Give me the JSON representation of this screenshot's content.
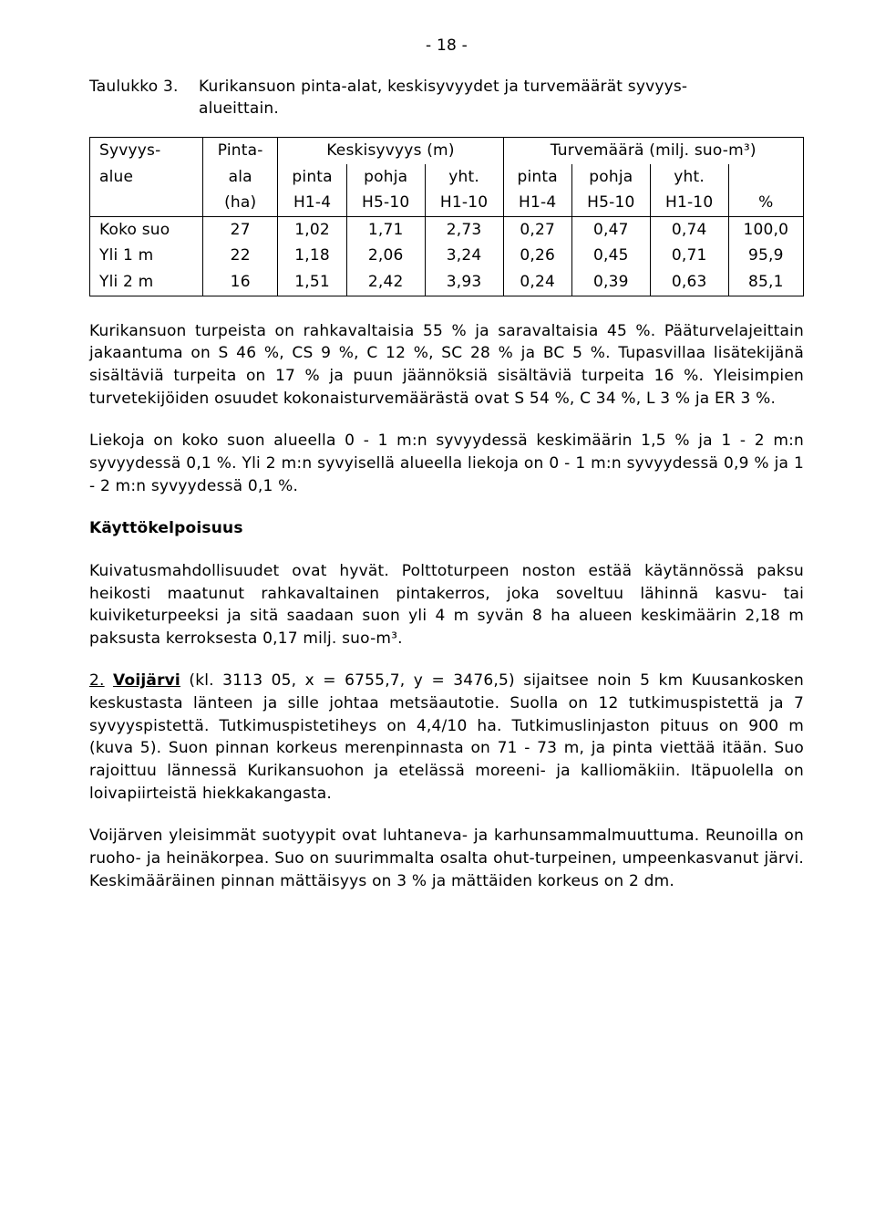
{
  "page_number": "- 18 -",
  "caption": {
    "label": "Taulukko 3.",
    "text_line1": "Kurikansuon pinta-alat, keskisyvyydet ja turvemäärät syvyys-",
    "text_line2": "alueittain."
  },
  "table": {
    "head": {
      "r1": [
        "Syvyys-",
        "Pinta-",
        "Keskisyvyys (m)",
        "Turvemäärä (milj. suo-m³)"
      ],
      "r2": [
        "alue",
        "ala",
        "pinta",
        "pohja",
        "yht.",
        "pinta",
        "pohja",
        "yht."
      ],
      "r3": [
        "",
        "(ha)",
        "H1-4",
        "H5-10",
        "H1-10",
        "H1-4",
        "H5-10",
        "H1-10",
        "%"
      ]
    },
    "rows": [
      [
        "Koko suo",
        "27",
        "1,02",
        "1,71",
        "2,73",
        "0,27",
        "0,47",
        "0,74",
        "100,0"
      ],
      [
        "Yli 1 m",
        "22",
        "1,18",
        "2,06",
        "3,24",
        "0,26",
        "0,45",
        "0,71",
        "95,9"
      ],
      [
        "Yli 2 m",
        "16",
        "1,51",
        "2,42",
        "3,93",
        "0,24",
        "0,39",
        "0,63",
        "85,1"
      ]
    ]
  },
  "para1": "Kurikansuon turpeista on rahkavaltaisia 55 % ja saravaltaisia 45 %. Pääturvelajeittain jakaantuma on S 46 %, CS 9 %, C 12 %, SC 28 % ja BC 5 %. Tupasvillaa lisätekijänä sisältäviä turpeita on 17 % ja puun jäännöksiä sisältäviä turpeita 16 %. Yleisimpien turvetekijöiden osuudet kokonaisturvemäärästä ovat S 54 %, C 34 %, L 3 % ja ER 3 %.",
  "para2": "Liekoja on koko suon alueella 0 - 1 m:n syvyydessä keskimäärin 1,5 % ja 1 - 2 m:n syvyydessä 0,1 %. Yli 2 m:n syvyisellä alueella liekoja on 0 - 1 m:n syvyydessä 0,9 % ja 1 - 2 m:n syvyydessä 0,1 %.",
  "heading1": "Käyttökelpoisuus",
  "para3": "Kuivatusmahdollisuudet ovat hyvät. Polttoturpeen noston estää käytännössä paksu heikosti maatunut rahkavaltainen pintakerros, joka soveltuu lähinnä kasvu- tai kuiviketurpeeksi ja sitä saadaan suon yli 4 m syvän 8 ha alueen keskimäärin 2,18 m paksusta kerroksesta 0,17 milj. suo-m³.",
  "para4": {
    "label_num": "2.",
    "label_name": "Voijärvi",
    "rest": " (kl. 3113 05, x = 6755,7, y = 3476,5) sijaitsee noin 5 km Kuusankosken keskustasta länteen ja sille johtaa metsäautotie. Suolla on 12 tutkimuspistettä ja 7 syvyyspistettä. Tutkimuspistetiheys on 4,4/10 ha. Tutkimuslinjaston pituus on 900 m (kuva 5). Suon pinnan korkeus merenpinnasta on 71 - 73 m, ja pinta viettää itään. Suo rajoittuu lännessä Kurikansuohon ja etelässä moreeni- ja kalliomäkiin. Itäpuolella on loivapiirteistä hiekkakangasta."
  },
  "para5": "Voijärven yleisimmät suotyypit ovat luhtaneva- ja karhunsammalmuuttuma. Reunoilla on ruoho- ja heinäkorpea. Suo on suurimmalta osalta ohut-turpeinen, umpeenkasvanut järvi. Keskimääräinen pinnan mättäisyys on 3 % ja mättäiden korkeus on 2 dm."
}
